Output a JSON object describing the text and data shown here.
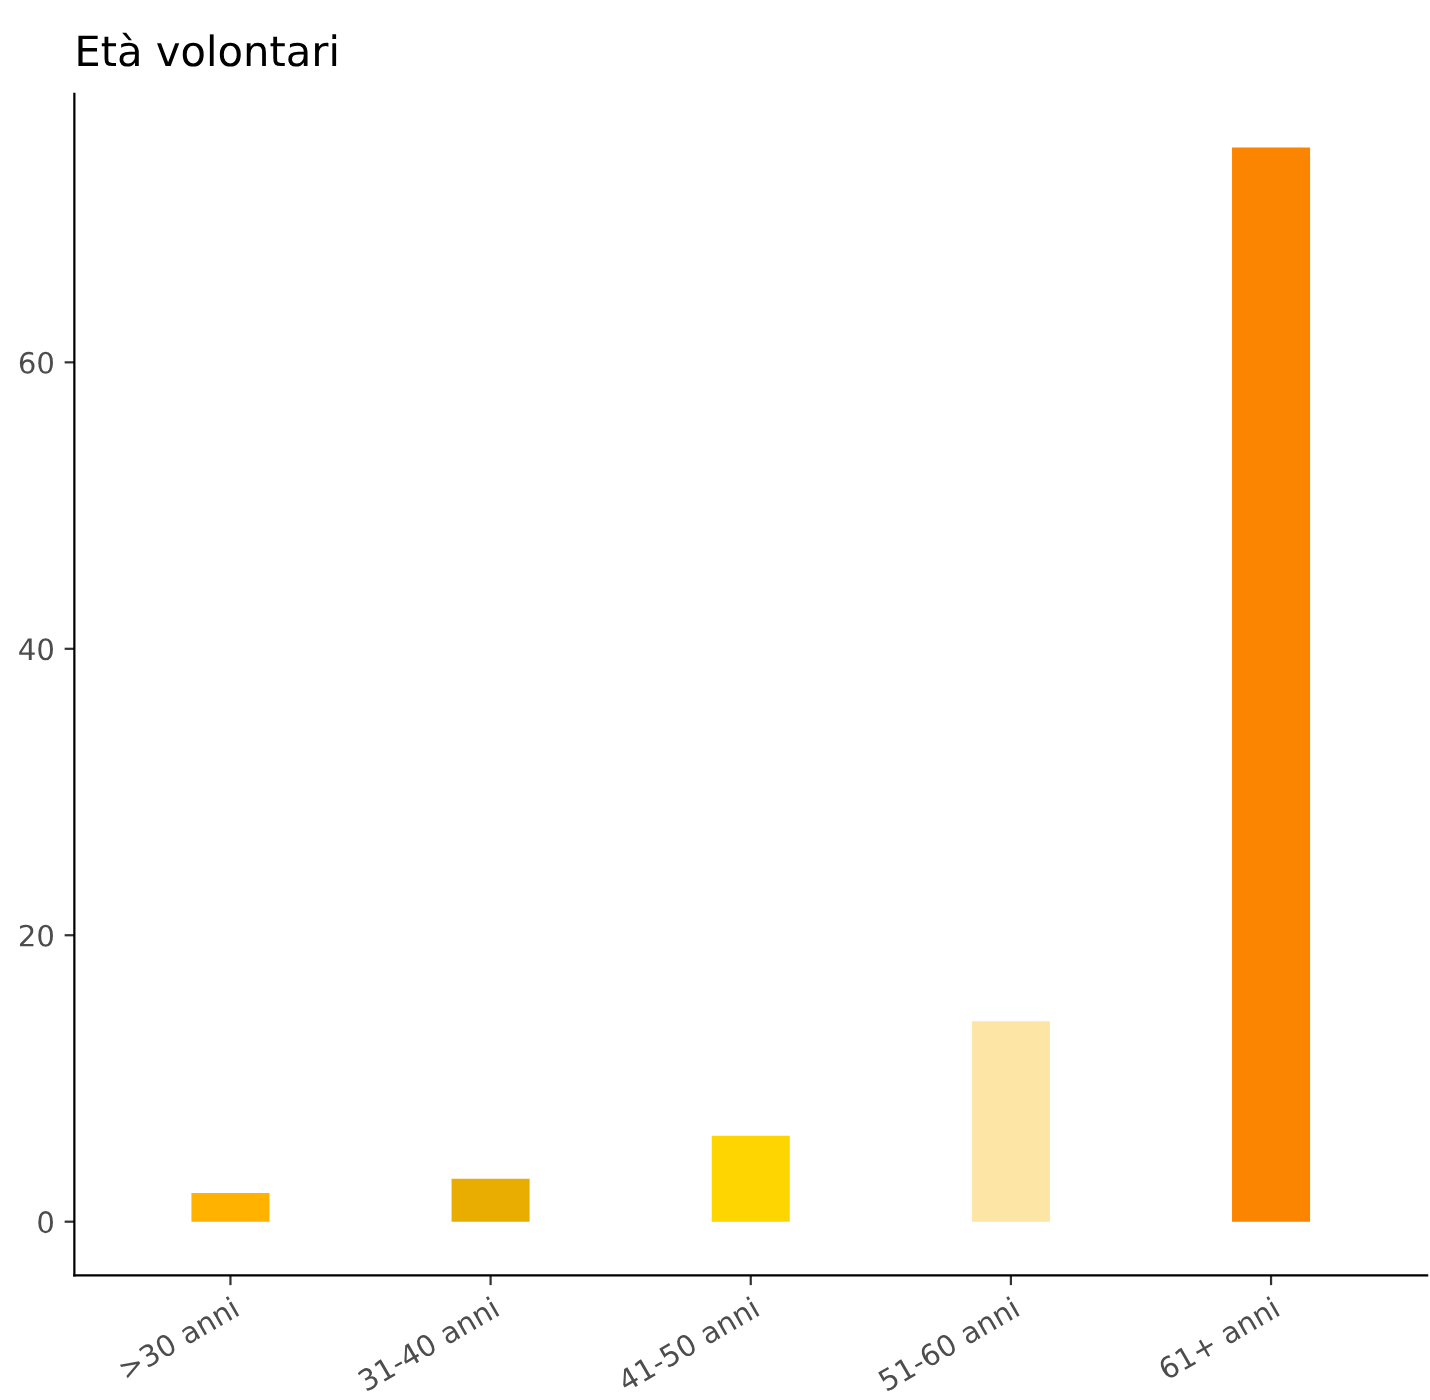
{
  "chart_data": {
    "type": "bar",
    "title": "Età volontari",
    "categories": [
      ">30 anni",
      "31-40 anni",
      "41-50 anni",
      "51-60 anni",
      "61+ anni"
    ],
    "values": [
      2,
      3,
      6,
      14,
      75
    ],
    "colors": [
      "#ffb300",
      "#e8ad00",
      "#ffd500",
      "#fde5a6",
      "#fb8500"
    ],
    "ylim": [
      -3.75,
      78.75
    ],
    "yticks": [
      0,
      20,
      40,
      60
    ],
    "grid": false,
    "legend": false
  }
}
